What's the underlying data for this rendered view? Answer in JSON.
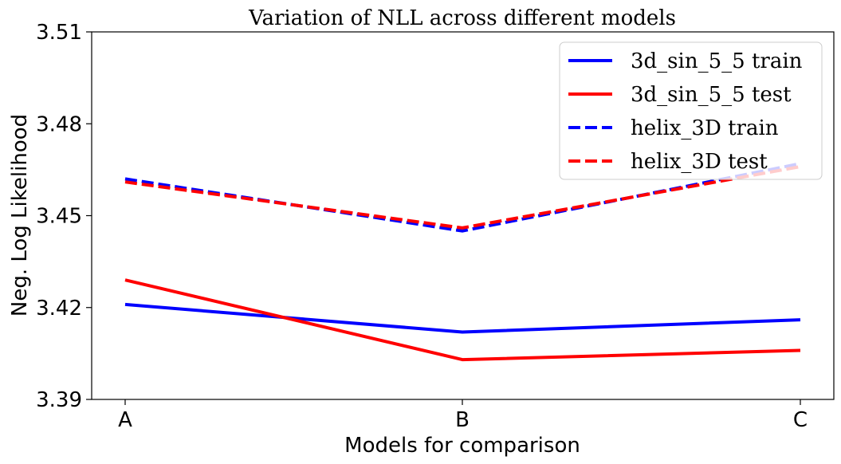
{
  "chart_data": {
    "type": "line",
    "title": "Variation of NLL across different models",
    "xlabel": "Models for comparison",
    "ylabel": "Neg. Log Likelihood",
    "categories": [
      "A",
      "B",
      "C"
    ],
    "ylim": [
      3.39,
      3.51
    ],
    "yticks": [
      "3.39",
      "3.42",
      "3.45",
      "3.48",
      "3.51"
    ],
    "grid": false,
    "legend_position": "top-right",
    "series": [
      {
        "name": "3d_sin_5_5 train",
        "values": [
          3.421,
          3.412,
          3.416
        ],
        "color": "#0000ff",
        "style": "solid"
      },
      {
        "name": "3d_sin_5_5 test",
        "values": [
          3.429,
          3.403,
          3.406
        ],
        "color": "#ff0000",
        "style": "solid"
      },
      {
        "name": "helix_3D train",
        "values": [
          3.462,
          3.445,
          3.467
        ],
        "color": "#0000ff",
        "style": "dashed"
      },
      {
        "name": "helix_3D test",
        "values": [
          3.461,
          3.446,
          3.466
        ],
        "color": "#ff0000",
        "style": "dashed"
      }
    ]
  }
}
